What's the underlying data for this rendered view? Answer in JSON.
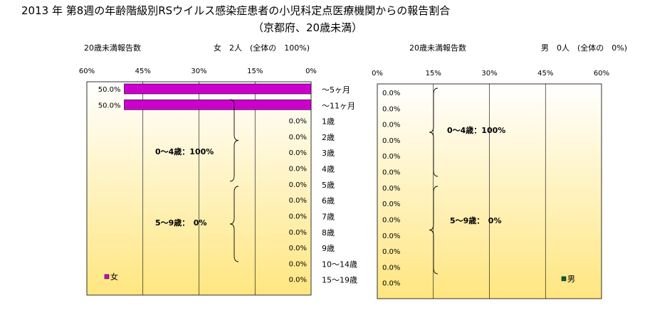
{
  "title": {
    "line1": "2013 年 第8週の年齢階級別RSウイルス感染症患者の小児科定点医療機関からの報告割合",
    "line2": "（京都府、20歳未満）"
  },
  "colors": {
    "female_bar": "#cc00cc",
    "male_bar": "#006633",
    "plot_bg_top": "#ffffff",
    "plot_bg_bottom": "#ffe680",
    "grid": "#000000"
  },
  "chart_data": [
    {
      "type": "bar",
      "orientation": "horizontal",
      "direction": "right-to-left",
      "header_left": "20歳未満報告数",
      "header_right": "女　2人　(全体の　100%)",
      "ticks": [
        "60%",
        "45%",
        "30%",
        "15%",
        "0%"
      ],
      "xlim": [
        0,
        60
      ],
      "categories": [
        "～5ヶ月",
        "～11ヶ月",
        "1歳",
        "2歳",
        "3歳",
        "4歳",
        "5歳",
        "6歳",
        "7歳",
        "8歳",
        "9歳",
        "10～14歳",
        "15～19歳"
      ],
      "values": [
        50.0,
        50.0,
        0.0,
        0.0,
        0.0,
        0.0,
        0.0,
        0.0,
        0.0,
        0.0,
        0.0,
        0.0,
        0.0
      ],
      "value_labels": [
        "50.0%",
        "50.0%",
        "0.0%",
        "0.0%",
        "0.0%",
        "0.0%",
        "0.0%",
        "0.0%",
        "0.0%",
        "0.0%",
        "0.0%",
        "0.0%",
        "0.0%"
      ],
      "group_labels": [
        "0～4歳：100%",
        "5～9歳：　0%"
      ],
      "legend": "女",
      "legend_position": "bottom-left",
      "grid": true
    },
    {
      "type": "bar",
      "orientation": "horizontal",
      "direction": "left-to-right",
      "header_left": "20歳未満報告数",
      "header_right": "男　0人　(全体の　0%)",
      "ticks": [
        "0%",
        "15%",
        "30%",
        "45%",
        "60%"
      ],
      "xlim": [
        0,
        60
      ],
      "categories": [
        "～5ヶ月",
        "～11ヶ月",
        "1歳",
        "2歳",
        "3歳",
        "4歳",
        "5歳",
        "6歳",
        "7歳",
        "8歳",
        "9歳",
        "10～14歳",
        "15～19歳"
      ],
      "values": [
        0.0,
        0.0,
        0.0,
        0.0,
        0.0,
        0.0,
        0.0,
        0.0,
        0.0,
        0.0,
        0.0,
        0.0,
        0.0
      ],
      "value_labels": [
        "0.0%",
        "0.0%",
        "0.0%",
        "0.0%",
        "0.0%",
        "0.0%",
        "0.0%",
        "0.0%",
        "0.0%",
        "0.0%",
        "0.0%",
        "0.0%",
        "0.0%"
      ],
      "group_labels": [
        "0～4歳：100%",
        "5～9歳：　0%"
      ],
      "legend": "男",
      "legend_position": "bottom-right",
      "grid": true
    }
  ]
}
